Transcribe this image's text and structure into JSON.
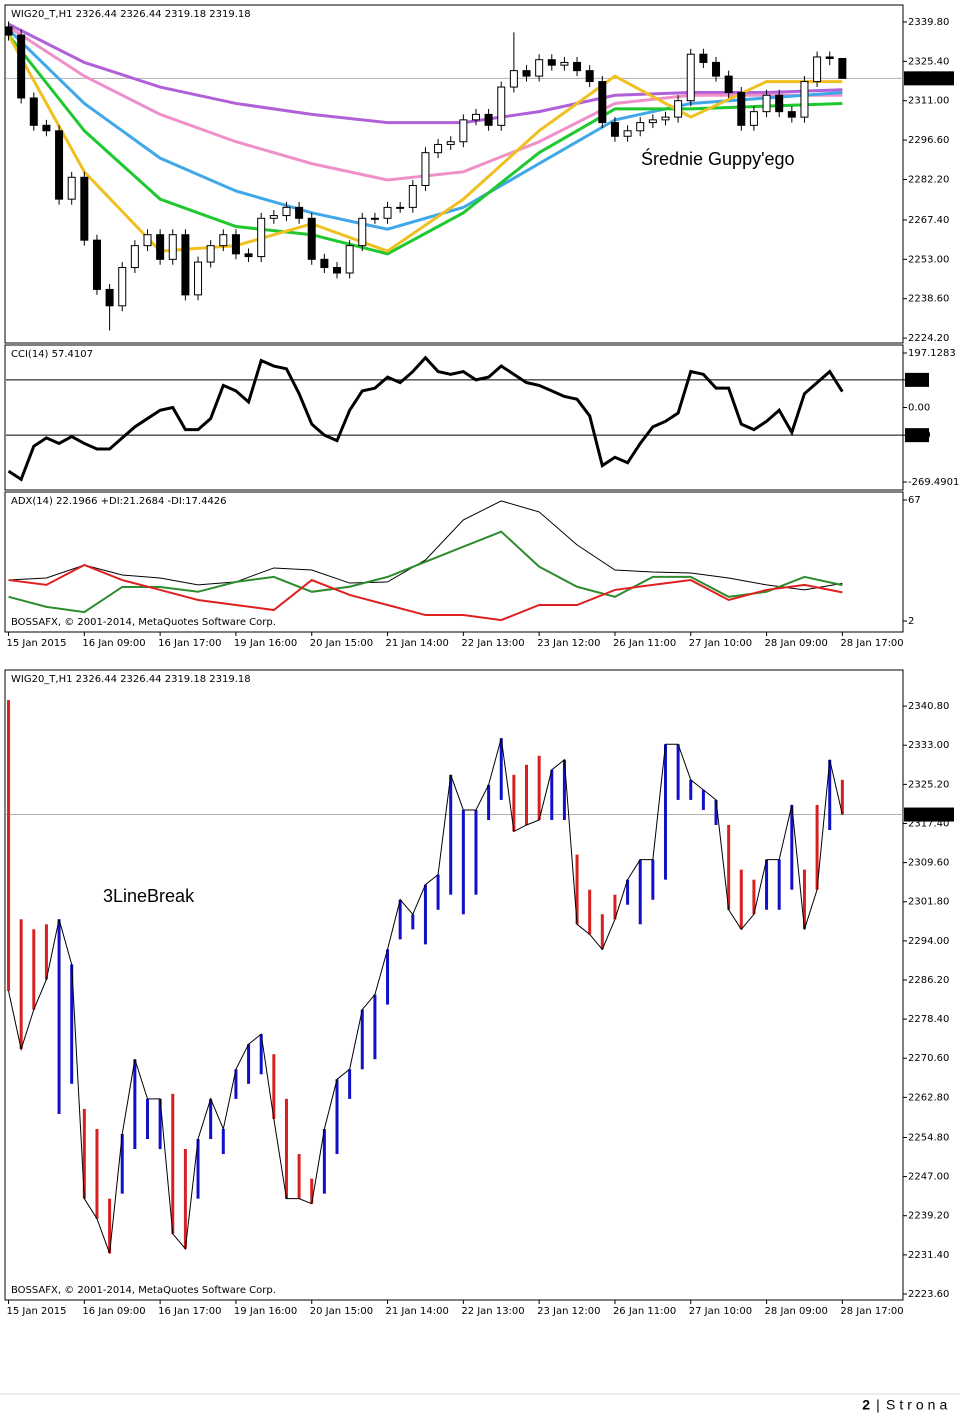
{
  "chart_data": [
    {
      "type": "candlestick",
      "title": "WIG20_T,H1  2326.44 2326.44 2319.18 2319.18",
      "annotation": "Średnie Guppy'ego",
      "open": [
        2338,
        2335,
        2312,
        2302,
        2300,
        2275,
        2283,
        2260,
        2242,
        2236,
        2250,
        2258,
        2262,
        2253,
        2262,
        2240,
        2252,
        2258,
        2262,
        2255,
        2254,
        2268,
        2269,
        2272,
        2268,
        2253,
        2250,
        2248,
        2258,
        2268,
        2268,
        2272,
        2272,
        2280,
        2292,
        2295,
        2296,
        2304,
        2306,
        2302,
        2316,
        2322,
        2320,
        2326,
        2324,
        2325,
        2322,
        2318,
        2303,
        2298,
        2300,
        2303,
        2304,
        2305,
        2311,
        2328,
        2325,
        2320,
        2314,
        2302,
        2307,
        2313,
        2307,
        2305,
        2318,
        2327,
        2326.44
      ],
      "high": [
        2340,
        2337,
        2314,
        2304,
        2302,
        2285,
        2285,
        2262,
        2244,
        2252,
        2260,
        2264,
        2264,
        2264,
        2264,
        2254,
        2260,
        2264,
        2264,
        2257,
        2270,
        2271,
        2274,
        2274,
        2270,
        2255,
        2252,
        2260,
        2270,
        2270,
        2274,
        2274,
        2282,
        2294,
        2297,
        2298,
        2306,
        2308,
        2308,
        2318,
        2336,
        2324,
        2328,
        2328,
        2327,
        2327,
        2324,
        2320,
        2305,
        2302,
        2305,
        2306,
        2307,
        2313,
        2330,
        2330,
        2327,
        2322,
        2316,
        2309,
        2315,
        2315,
        2309,
        2320,
        2329,
        2329,
        2326.44
      ],
      "low": [
        2333,
        2310,
        2300,
        2298,
        2273,
        2273,
        2258,
        2240,
        2227,
        2234,
        2248,
        2256,
        2251,
        2251,
        2238,
        2238,
        2250,
        2256,
        2253,
        2252,
        2252,
        2266,
        2267,
        2266,
        2251,
        2248,
        2246,
        2246,
        2256,
        2266,
        2266,
        2270,
        2270,
        2278,
        2290,
        2293,
        2294,
        2302,
        2300,
        2300,
        2314,
        2318,
        2318,
        2322,
        2322,
        2320,
        2316,
        2301,
        2296,
        2296,
        2298,
        2301,
        2302,
        2303,
        2309,
        2323,
        2318,
        2312,
        2300,
        2300,
        2305,
        2305,
        2303,
        2303,
        2316,
        2324,
        2319.18
      ],
      "close": [
        2335,
        2312,
        2302,
        2300,
        2275,
        2283,
        2260,
        2242,
        2236,
        2250,
        2258,
        2262,
        2253,
        2262,
        2240,
        2252,
        2258,
        2262,
        2255,
        2254,
        2268,
        2269,
        2272,
        2268,
        2253,
        2250,
        2248,
        2258,
        2268,
        2268,
        2272,
        2272,
        2280,
        2292,
        2295,
        2296,
        2304,
        2306,
        2302,
        2316,
        2322,
        2320,
        2326,
        2324,
        2325,
        2322,
        2318,
        2303,
        2298,
        2300,
        2303,
        2304,
        2305,
        2311,
        2328,
        2325,
        2320,
        2314,
        2302,
        2307,
        2313,
        2307,
        2305,
        2318,
        2327,
        2326.44,
        2319.18
      ],
      "up_color": "#ffffff",
      "down_color": "#000000",
      "series": [
        {
          "color": "#b060d8",
          "x": [
            0,
            6,
            12,
            18,
            24,
            30,
            36,
            42,
            48,
            54,
            60,
            66
          ],
          "values": [
            2339,
            2325,
            2316,
            2310,
            2306,
            2303,
            2303,
            2307,
            2313,
            2314,
            2314,
            2315
          ]
        },
        {
          "color": "#f090c8",
          "x": [
            0,
            6,
            12,
            18,
            24,
            30,
            36,
            42,
            48,
            54,
            60,
            66
          ],
          "values": [
            2338,
            2320,
            2306,
            2296,
            2288,
            2282,
            2285,
            2296,
            2310,
            2313,
            2313,
            2313
          ]
        },
        {
          "color": "#40a8e8",
          "x": [
            0,
            6,
            12,
            18,
            24,
            30,
            36,
            42,
            48,
            54,
            60,
            66
          ],
          "values": [
            2337,
            2310,
            2290,
            2278,
            2270,
            2264,
            2272,
            2288,
            2304,
            2310,
            2312,
            2314
          ]
        },
        {
          "color": "#20c830",
          "x": [
            0,
            6,
            12,
            18,
            24,
            30,
            36,
            42,
            48,
            54,
            60,
            66
          ],
          "values": [
            2335,
            2300,
            2275,
            2265,
            2262,
            2255,
            2270,
            2292,
            2308,
            2308,
            2309,
            2310
          ]
        },
        {
          "color": "#f0c020",
          "x": [
            0,
            6,
            12,
            18,
            24,
            30,
            36,
            42,
            48,
            54,
            60,
            66
          ],
          "values": [
            2335,
            2285,
            2256,
            2258,
            2266,
            2256,
            2275,
            2300,
            2320,
            2305,
            2318,
            2318
          ]
        }
      ],
      "last_price": 2319.18,
      "xlim": [
        -0.2,
        70.8
      ],
      "ylim": [
        2222.4,
        2346.0
      ],
      "yticks": [
        {
          "value": 2339.8,
          "label": "2339.80"
        },
        {
          "value": 2325.4,
          "label": "2325.40"
        },
        {
          "value": 2311,
          "label": "2311.00"
        },
        {
          "value": 2296.6,
          "label": "2296.60"
        },
        {
          "value": 2282.2,
          "label": "2282.20"
        },
        {
          "value": 2267.4,
          "label": "2267.40"
        },
        {
          "value": 2253,
          "label": "2253.00"
        },
        {
          "value": 2238.6,
          "label": "2238.60"
        },
        {
          "value": 2224.2,
          "label": "2224.20"
        }
      ]
    },
    {
      "type": "line",
      "title": "CCI(14) 57.4107",
      "series": [
        {
          "color": "#000000",
          "values": [
            -230,
            -260,
            -140,
            -110,
            -130,
            -105,
            -130,
            -150,
            -150,
            -110,
            -70,
            -40,
            -10,
            0,
            -80,
            -80,
            -40,
            80,
            60,
            20,
            170,
            150,
            140,
            50,
            -60,
            -100,
            -120,
            -10,
            60,
            70,
            110,
            90,
            130,
            180,
            130,
            120,
            130,
            100,
            110,
            150,
            120,
            90,
            80,
            60,
            40,
            30,
            -30,
            -210,
            -180,
            -200,
            -130,
            -70,
            -50,
            -20,
            130,
            120,
            70,
            70,
            -60,
            -80,
            -50,
            -10,
            -90,
            50,
            90,
            130,
            57.4107
          ]
        }
      ],
      "levels": [
        100,
        -100
      ],
      "xlim": [
        -0.2,
        70.8
      ],
      "ylim": [
        -298.4,
        226.1
      ],
      "yticks": [
        197.1283,
        100,
        {
          "value": 0,
          "label": "0.00"
        },
        -100,
        -269.4901
      ]
    },
    {
      "type": "line",
      "title": "ADX(14) 22.1966 +DI:21.2684 -DI:17.4426",
      "copyright": "BOSSAFX, © 2001-2014, MetaQuotes Software Corp.",
      "series": [
        {
          "color": "#000000",
          "x": [
            0,
            3,
            6,
            9,
            12,
            15,
            18,
            21,
            24,
            27,
            30,
            33,
            36,
            39,
            42,
            45,
            48,
            51,
            54,
            57,
            60,
            63,
            66
          ],
          "values": [
            24.0,
            25.1,
            32.1,
            26.7,
            25.1,
            21.4,
            23.0,
            30.5,
            29.4,
            22.4,
            23.0,
            34.8,
            56.3,
            66.5,
            60.6,
            42.9,
            29.4,
            28.3,
            27.8,
            25.1,
            21.4,
            18.7,
            22.2
          ]
        },
        {
          "color": "#2e8b2e",
          "x": [
            0,
            3,
            6,
            9,
            12,
            15,
            18,
            21,
            24,
            27,
            30,
            33,
            36,
            39,
            42,
            45,
            48,
            51,
            54,
            57,
            60,
            63,
            66
          ],
          "values": [
            15.0,
            9.6,
            6.8,
            20.3,
            20.3,
            17.7,
            23.0,
            25.7,
            17.7,
            20.4,
            25.7,
            33.8,
            41.9,
            50.0,
            31.2,
            20.4,
            15.0,
            25.7,
            25.7,
            15.0,
            17.7,
            25.7,
            21.3
          ]
        },
        {
          "color": "#e02020",
          "x": [
            0,
            3,
            6,
            9,
            12,
            15,
            18,
            21,
            24,
            27,
            30,
            33,
            36,
            39,
            42,
            45,
            48,
            51,
            54,
            57,
            60,
            63,
            66
          ],
          "values": [
            24.0,
            21.4,
            32.1,
            24.0,
            18.7,
            13.3,
            10.6,
            7.9,
            24.0,
            16.0,
            10.6,
            5.2,
            5.2,
            2.5,
            10.6,
            10.6,
            18.7,
            21.4,
            24.0,
            13.3,
            18.7,
            21.4,
            17.4
          ]
        }
      ],
      "xlim": [
        -0.2,
        70.8
      ],
      "ylim": [
        -3.9,
        71.3
      ],
      "yticks": [
        67,
        2
      ],
      "xticks": [
        {
          "value": 0,
          "label": "15 Jan 2015"
        },
        {
          "value": 6,
          "label": "16 Jan 09:00"
        },
        {
          "value": 12,
          "label": "16 Jan 17:00"
        },
        {
          "value": 18,
          "label": "19 Jan 16:00"
        },
        {
          "value": 24,
          "label": "20 Jan 15:00"
        },
        {
          "value": 30,
          "label": "21 Jan 14:00"
        },
        {
          "value": 36,
          "label": "22 Jan 13:00"
        },
        {
          "value": 42,
          "label": "23 Jan 12:00"
        },
        {
          "value": 48,
          "label": "26 Jan 11:00"
        },
        {
          "value": 54,
          "label": "27 Jan 10:00"
        },
        {
          "value": 60,
          "label": "28 Jan 09:00"
        },
        {
          "value": 66,
          "label": "28 Jan 17:00"
        }
      ]
    },
    {
      "type": "linebreak",
      "title": "WIG20_T,H1  2326.44 2326.44 2319.18 2319.18",
      "annotation": "3LineBreak",
      "copyright": "BOSSAFX, © 2001-2014, MetaQuotes Software Corp.",
      "open": [
        2342.0,
        2298.3,
        2296.3,
        2297.3,
        2259.5,
        2265.5,
        2260.5,
        2256.5,
        2242.6,
        2243.6,
        2252.5,
        2254.5,
        2252.5,
        2263.5,
        2252.5,
        2242.6,
        2254.5,
        2251.5,
        2262.5,
        2265.5,
        2267.4,
        2271.4,
        2262.5,
        2251.5,
        2246.6,
        2243.6,
        2251.5,
        2262.5,
        2268.4,
        2270.4,
        2281.3,
        2294.3,
        2296.3,
        2293.3,
        2300.2,
        2303.2,
        2299.3,
        2303.2,
        2318.1,
        2322.1,
        2327.1,
        2329.1,
        2330.9,
        2318.1,
        2318.1,
        2311.2,
        2304.2,
        2299.3,
        2303.2,
        2301.2,
        2297.3,
        2302.2,
        2306.2,
        2322.1,
        2322.1,
        2320.1,
        2317.1,
        2317.1,
        2308.2,
        2306.2,
        2300.2,
        2300.2,
        2304.2,
        2308.2,
        2321.1,
        2316.1,
        2326.1
      ],
      "close": [
        2284.0,
        2272.4,
        2280.3,
        2286.3,
        2298.3,
        2289.3,
        2242.6,
        2238.6,
        2231.7,
        2255.5,
        2270.4,
        2262.5,
        2262.5,
        2235.6,
        2232.6,
        2254.5,
        2262.5,
        2256.5,
        2268.4,
        2273.4,
        2275.4,
        2258.5,
        2242.6,
        2242.6,
        2241.6,
        2256.5,
        2266.4,
        2268.4,
        2280.3,
        2283.3,
        2292.3,
        2302.2,
        2299.3,
        2305.2,
        2307.2,
        2327.1,
        2320.1,
        2320.1,
        2325.1,
        2334.4,
        2315.8,
        2317.1,
        2318.1,
        2328.1,
        2330.1,
        2297.3,
        2295.3,
        2292.3,
        2298.3,
        2306.2,
        2310.2,
        2310.2,
        2333.2,
        2333.2,
        2326.1,
        2324.1,
        2322.1,
        2300.2,
        2296.3,
        2299.3,
        2310.2,
        2310.2,
        2321.1,
        2296.3,
        2304.2,
        2330.1,
        2319.2
      ],
      "up_color": "#1010c8",
      "down_color": "#d82020",
      "line_color": "#000000",
      "last_price": 2319.18,
      "xlim": [
        -0.2,
        70.8
      ],
      "ylim": [
        2222.4,
        2348.0
      ],
      "yticks": [
        {
          "value": 2340.8,
          "label": "2340.80"
        },
        {
          "value": 2333,
          "label": "2333.00"
        },
        {
          "value": 2325.2,
          "label": "2325.20"
        },
        {
          "value": 2317.4,
          "label": "2317.40"
        },
        {
          "value": 2309.6,
          "label": "2309.60"
        },
        {
          "value": 2301.8,
          "label": "2301.80"
        },
        {
          "value": 2294,
          "label": "2294.00"
        },
        {
          "value": 2286.2,
          "label": "2286.20"
        },
        {
          "value": 2278.4,
          "label": "2278.40"
        },
        {
          "value": 2270.6,
          "label": "2270.60"
        },
        {
          "value": 2262.8,
          "label": "2262.80"
        },
        {
          "value": 2254.8,
          "label": "2254.80"
        },
        {
          "value": 2247,
          "label": "2247.00"
        },
        {
          "value": 2239.2,
          "label": "2239.20"
        },
        {
          "value": 2231.4,
          "label": "2231.40"
        },
        {
          "value": 2223.6,
          "label": "2223.60"
        }
      ],
      "xticks": [
        {
          "value": 0,
          "label": "15 Jan 2015"
        },
        {
          "value": 6,
          "label": "16 Jan 09:00"
        },
        {
          "value": 12,
          "label": "16 Jan 17:00"
        },
        {
          "value": 18,
          "label": "19 Jan 16:00"
        },
        {
          "value": 24,
          "label": "20 Jan 15:00"
        },
        {
          "value": 30,
          "label": "21 Jan 14:00"
        },
        {
          "value": 36,
          "label": "22 Jan 13:00"
        },
        {
          "value": 42,
          "label": "23 Jan 12:00"
        },
        {
          "value": 48,
          "label": "26 Jan 11:00"
        },
        {
          "value": 54,
          "label": "27 Jan 10:00"
        },
        {
          "value": 60,
          "label": "28 Jan 09:00"
        },
        {
          "value": 66,
          "label": "28 Jan 17:00"
        }
      ]
    }
  ],
  "footer": {
    "page": "2",
    "separator": "|",
    "word": "Strona"
  }
}
